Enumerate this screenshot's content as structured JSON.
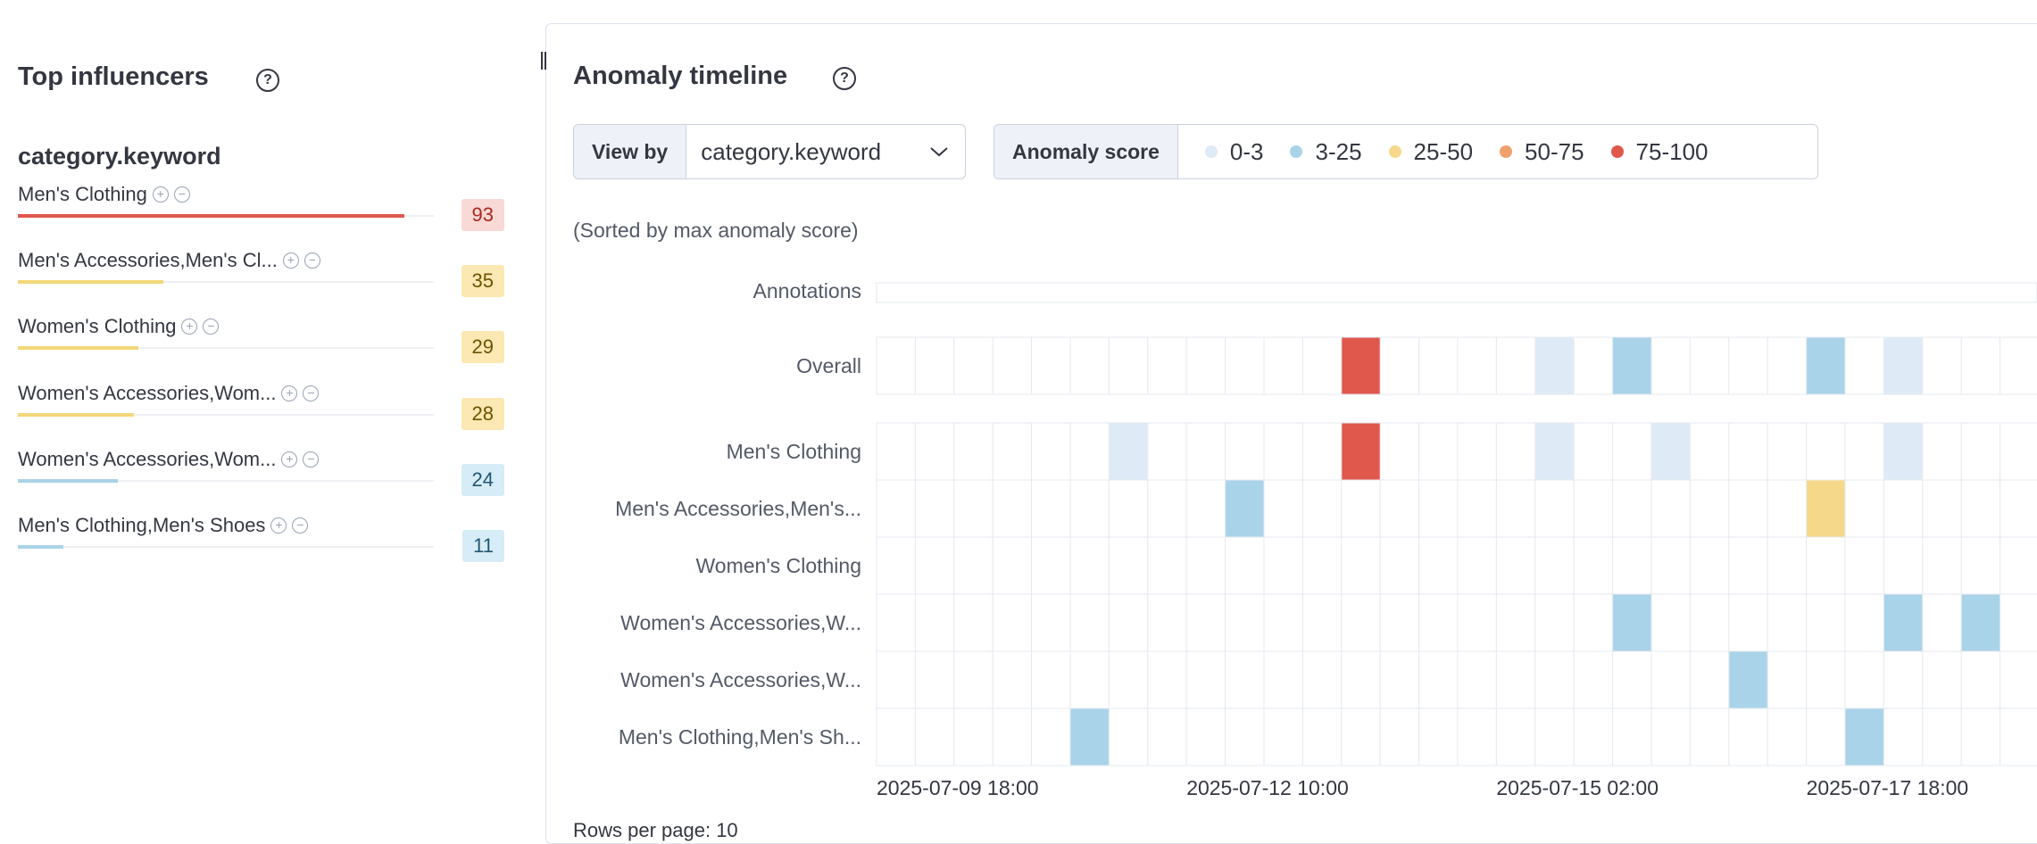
{
  "influencers": {
    "title": "Top influencers",
    "field": "category.keyword",
    "items": [
      {
        "name": "Men's Clothing",
        "score": 93,
        "color": "#e0584c",
        "badge_bg": "#f8d9d6",
        "badge_fg": "#a8281e"
      },
      {
        "name": "Men's Accessories,Men's Cl...",
        "score": 35,
        "color": "#f3d77a",
        "badge_bg": "#fbe8b2",
        "badge_fg": "#6e5200"
      },
      {
        "name": "Women's Clothing",
        "score": 29,
        "color": "#f3d77a",
        "badge_bg": "#fbe8b2",
        "badge_fg": "#6e5200"
      },
      {
        "name": "Women's Accessories,Wom...",
        "score": 28,
        "color": "#f3d77a",
        "badge_bg": "#fbe8b2",
        "badge_fg": "#6e5200"
      },
      {
        "name": "Women's Accessories,Wom...",
        "score": 24,
        "color": "#a9d3e8",
        "badge_bg": "#d6ecf6",
        "badge_fg": "#245673"
      },
      {
        "name": "Men's Clothing,Men's Shoes",
        "score": 11,
        "color": "#a9d3e8",
        "badge_bg": "#d6ecf6",
        "badge_fg": "#245673"
      }
    ]
  },
  "timeline": {
    "title": "Anomaly timeline",
    "view_by_label": "View by",
    "view_by_value": "category.keyword",
    "legend_label": "Anomaly score",
    "legend": [
      {
        "label": "0-3",
        "color": "#deeaf5"
      },
      {
        "label": "3-25",
        "color": "#a9d3e8"
      },
      {
        "label": "25-50",
        "color": "#f5d889"
      },
      {
        "label": "50-75",
        "color": "#f0a06a"
      },
      {
        "label": "75-100",
        "color": "#e0584c"
      }
    ],
    "sort_note": "(Sorted by max anomaly score)",
    "annotations_label": "Annotations",
    "overall": {
      "label": "Overall",
      "cells": [
        {
          "col": 12,
          "level": 4
        },
        {
          "col": 17,
          "level": 0
        },
        {
          "col": 19,
          "level": 1
        },
        {
          "col": 24,
          "level": 1
        },
        {
          "col": 26,
          "level": 0
        }
      ]
    },
    "rows": [
      {
        "label": "Men's Clothing",
        "cells": [
          {
            "col": 6,
            "level": 0
          },
          {
            "col": 12,
            "level": 4
          },
          {
            "col": 17,
            "level": 0
          },
          {
            "col": 20,
            "level": 0
          },
          {
            "col": 26,
            "level": 0
          }
        ]
      },
      {
        "label": "Men's Accessories,Men's...",
        "cells": [
          {
            "col": 9,
            "level": 1
          },
          {
            "col": 24,
            "level": 2
          }
        ]
      },
      {
        "label": "Women's Clothing",
        "cells": []
      },
      {
        "label": "Women's Accessories,W...",
        "cells": [
          {
            "col": 19,
            "level": 1
          },
          {
            "col": 26,
            "level": 1
          },
          {
            "col": 28,
            "level": 1
          }
        ]
      },
      {
        "label": "Women's Accessories,W...",
        "cells": [
          {
            "col": 22,
            "level": 1
          }
        ]
      },
      {
        "label": "Men's Clothing,Men's Sh...",
        "cells": [
          {
            "col": 5,
            "level": 1
          },
          {
            "col": 25,
            "level": 1
          }
        ]
      }
    ],
    "x_labels": [
      "2025-07-09 18:00",
      "2025-07-12 10:00",
      "2025-07-15 02:00",
      "2025-07-17 18:00"
    ],
    "rows_per_page": "Rows per page: 10"
  }
}
